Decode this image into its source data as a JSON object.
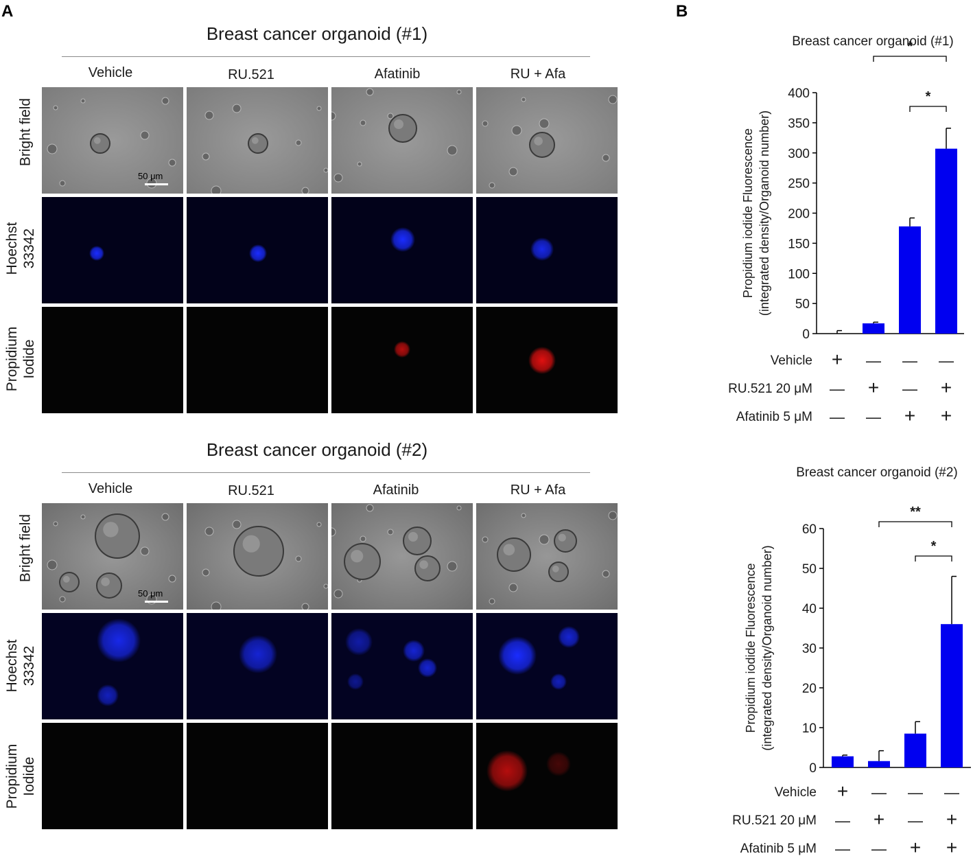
{
  "panel_a": {
    "letter": "A",
    "sets": [
      {
        "title": "Breast cancer organoid (#1)",
        "columns": [
          "Vehicle",
          "RU.521",
          "Afatinib",
          "RU + Afa"
        ],
        "rows": [
          [
            "Bright field"
          ],
          [
            "Hoechst",
            "33342"
          ],
          [
            "Propidium",
            "Iodide"
          ]
        ],
        "scale_bar": "50 μm"
      },
      {
        "title": "Breast cancer organoid (#2)",
        "columns": [
          "Vehicle",
          "RU.521",
          "Afatinib",
          "RU + Afa"
        ],
        "rows": [
          [
            "Bright field"
          ],
          [
            "Hoechst",
            "33342"
          ],
          [
            "Propidium",
            "Iodide"
          ]
        ],
        "scale_bar": "50 μm"
      }
    ]
  },
  "panel_b": {
    "letter": "B"
  },
  "chart_data": [
    {
      "type": "bar",
      "title": "Breast cancer organoid (#1)",
      "ylabel_lines": [
        "Propidium iodide Fluorescence",
        "(integrated density/Organoid number)"
      ],
      "ylim": [
        0,
        400
      ],
      "yticks": [
        0,
        50,
        100,
        150,
        200,
        250,
        300,
        350,
        400
      ],
      "categories": [
        "1",
        "2",
        "3",
        "4"
      ],
      "values": [
        0,
        17,
        178,
        307
      ],
      "errors": [
        5,
        2,
        14,
        34
      ],
      "bar_color": "#0000f0",
      "significance": [
        {
          "from": 1,
          "to": 3,
          "label": "*"
        },
        {
          "from": 2,
          "to": 3,
          "label": "*"
        }
      ],
      "treatment_rows": [
        {
          "label": "Vehicle",
          "marks": [
            "+",
            "—",
            "—",
            "—"
          ]
        },
        {
          "label": "RU.521 20 μM",
          "marks": [
            "—",
            "+",
            "—",
            "+"
          ]
        },
        {
          "label": "Afatinib 5 μM",
          "marks": [
            "—",
            "—",
            "+",
            "+"
          ]
        }
      ]
    },
    {
      "type": "bar",
      "title": "Breast cancer organoid (#2)",
      "ylabel_lines": [
        "Propidium iodide Fluorescence",
        "(integrated density/Organoid number)"
      ],
      "ylim": [
        0,
        60
      ],
      "yticks": [
        0,
        10,
        20,
        30,
        40,
        50,
        60
      ],
      "categories": [
        "1",
        "2",
        "3",
        "4"
      ],
      "values": [
        2.8,
        1.6,
        8.5,
        36
      ],
      "errors": [
        0.3,
        2.6,
        3.0,
        12
      ],
      "bar_color": "#0000f0",
      "significance": [
        {
          "from": 1,
          "to": 3,
          "label": "**"
        },
        {
          "from": 2,
          "to": 3,
          "label": "*"
        }
      ],
      "treatment_rows": [
        {
          "label": "Vehicle",
          "marks": [
            "+",
            "—",
            "—",
            "—"
          ]
        },
        {
          "label": "RU.521 20 μM",
          "marks": [
            "—",
            "+",
            "—",
            "+"
          ]
        },
        {
          "label": "Afatinib 5 μM",
          "marks": [
            "—",
            "—",
            "+",
            "+"
          ]
        }
      ]
    }
  ]
}
